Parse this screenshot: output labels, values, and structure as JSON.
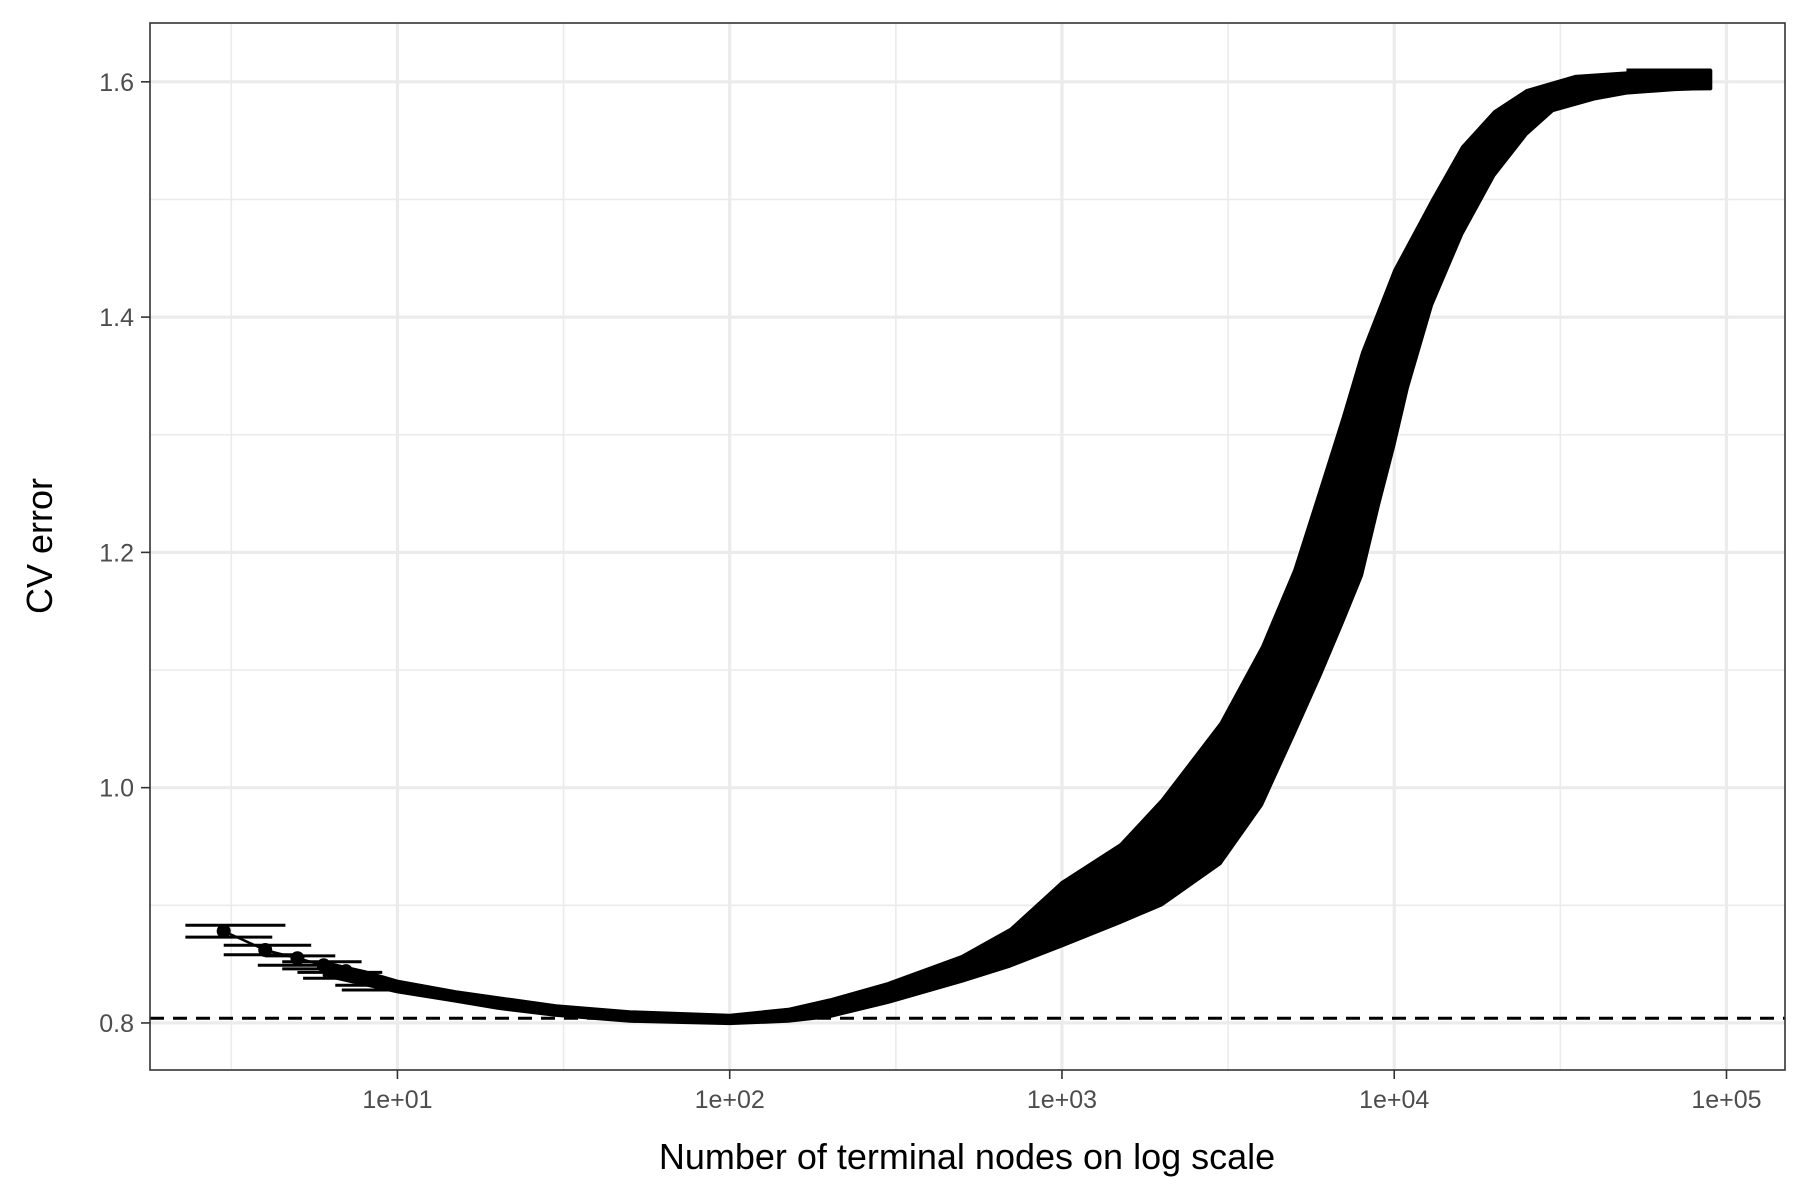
{
  "chart_data": {
    "type": "line",
    "xlabel": "Number of terminal nodes on log scale",
    "ylabel": "CV error",
    "x_scale": "log10",
    "xlim": [
      1.8,
      150000
    ],
    "ylim": [
      0.76,
      1.65
    ],
    "x_ticks": [
      {
        "value": 10,
        "label": "1e+01"
      },
      {
        "value": 100,
        "label": "1e+02"
      },
      {
        "value": 1000,
        "label": "1e+03"
      },
      {
        "value": 10000,
        "label": "1e+04"
      },
      {
        "value": 100000,
        "label": "1e+05"
      }
    ],
    "y_ticks": [
      {
        "value": 0.8,
        "label": "0.8"
      },
      {
        "value": 1.0,
        "label": "1.0"
      },
      {
        "value": 1.2,
        "label": "1.2"
      },
      {
        "value": 1.4,
        "label": "1.4"
      },
      {
        "value": 1.6,
        "label": "1.6"
      }
    ],
    "grid": true,
    "reference_line": {
      "y": 0.804,
      "style": "dashed"
    },
    "points": [
      {
        "x": 3,
        "y": 0.878
      },
      {
        "x": 4,
        "y": 0.862
      },
      {
        "x": 5,
        "y": 0.855
      },
      {
        "x": 6,
        "y": 0.849
      },
      {
        "x": 7,
        "y": 0.844
      },
      {
        "x": 8,
        "y": 0.838
      }
    ],
    "error_bars_horizontal": [
      {
        "y": 0.883,
        "x_low": 2.3,
        "x_high": 4.6
      },
      {
        "y": 0.873,
        "x_low": 2.3,
        "x_high": 4.2
      },
      {
        "y": 0.866,
        "x_low": 3.0,
        "x_high": 5.5
      },
      {
        "y": 0.858,
        "x_low": 3.0,
        "x_high": 5.0
      },
      {
        "y": 0.857,
        "x_low": 4.0,
        "x_high": 6.5
      },
      {
        "y": 0.849,
        "x_low": 3.8,
        "x_high": 6.2
      },
      {
        "y": 0.852,
        "x_low": 4.5,
        "x_high": 7.8
      },
      {
        "y": 0.846,
        "x_low": 4.5,
        "x_high": 7.2
      },
      {
        "y": 0.843,
        "x_low": 5.0,
        "x_high": 9.0
      },
      {
        "y": 0.838,
        "x_low": 5.2,
        "x_high": 8.6
      },
      {
        "y": 0.832,
        "x_low": 6.5,
        "x_high": 11.0
      },
      {
        "y": 0.828,
        "x_low": 6.8,
        "x_high": 10.5
      }
    ],
    "band": {
      "upper": [
        {
          "x": 6,
          "y": 0.852
        },
        {
          "x": 8,
          "y": 0.844
        },
        {
          "x": 10,
          "y": 0.836
        },
        {
          "x": 15,
          "y": 0.827
        },
        {
          "x": 20,
          "y": 0.822
        },
        {
          "x": 30,
          "y": 0.815
        },
        {
          "x": 50,
          "y": 0.81
        },
        {
          "x": 100,
          "y": 0.807
        },
        {
          "x": 150,
          "y": 0.812
        },
        {
          "x": 200,
          "y": 0.82
        },
        {
          "x": 300,
          "y": 0.834
        },
        {
          "x": 500,
          "y": 0.857
        },
        {
          "x": 700,
          "y": 0.88
        },
        {
          "x": 1000,
          "y": 0.92
        },
        {
          "x": 1500,
          "y": 0.952
        },
        {
          "x": 2000,
          "y": 0.99
        },
        {
          "x": 3000,
          "y": 1.055
        },
        {
          "x": 4000,
          "y": 1.12
        },
        {
          "x": 5000,
          "y": 1.185
        },
        {
          "x": 6000,
          "y": 1.255
        },
        {
          "x": 7000,
          "y": 1.315
        },
        {
          "x": 8000,
          "y": 1.37
        },
        {
          "x": 10000,
          "y": 1.44
        },
        {
          "x": 13000,
          "y": 1.5
        },
        {
          "x": 16000,
          "y": 1.545
        },
        {
          "x": 20000,
          "y": 1.575
        },
        {
          "x": 25000,
          "y": 1.593
        },
        {
          "x": 35000,
          "y": 1.605
        },
        {
          "x": 50000,
          "y": 1.608
        },
        {
          "x": 70000,
          "y": 1.609
        },
        {
          "x": 90000,
          "y": 1.61
        }
      ],
      "lower": [
        {
          "x": 90000,
          "y": 1.594
        },
        {
          "x": 70000,
          "y": 1.593
        },
        {
          "x": 50000,
          "y": 1.59
        },
        {
          "x": 40000,
          "y": 1.585
        },
        {
          "x": 30000,
          "y": 1.575
        },
        {
          "x": 25000,
          "y": 1.555
        },
        {
          "x": 20000,
          "y": 1.52
        },
        {
          "x": 16000,
          "y": 1.47
        },
        {
          "x": 13000,
          "y": 1.41
        },
        {
          "x": 11000,
          "y": 1.34
        },
        {
          "x": 10000,
          "y": 1.29
        },
        {
          "x": 9000,
          "y": 1.24
        },
        {
          "x": 8000,
          "y": 1.18
        },
        {
          "x": 7000,
          "y": 1.14
        },
        {
          "x": 6000,
          "y": 1.095
        },
        {
          "x": 5000,
          "y": 1.045
        },
        {
          "x": 4000,
          "y": 0.985
        },
        {
          "x": 3000,
          "y": 0.935
        },
        {
          "x": 2000,
          "y": 0.9
        },
        {
          "x": 1500,
          "y": 0.885
        },
        {
          "x": 1000,
          "y": 0.865
        },
        {
          "x": 700,
          "y": 0.848
        },
        {
          "x": 500,
          "y": 0.835
        },
        {
          "x": 300,
          "y": 0.817
        },
        {
          "x": 200,
          "y": 0.805
        },
        {
          "x": 150,
          "y": 0.801
        },
        {
          "x": 100,
          "y": 0.799
        },
        {
          "x": 50,
          "y": 0.801
        },
        {
          "x": 30,
          "y": 0.806
        },
        {
          "x": 20,
          "y": 0.812
        },
        {
          "x": 15,
          "y": 0.818
        },
        {
          "x": 10,
          "y": 0.826
        },
        {
          "x": 8,
          "y": 0.832
        },
        {
          "x": 6,
          "y": 0.84
        }
      ]
    }
  }
}
